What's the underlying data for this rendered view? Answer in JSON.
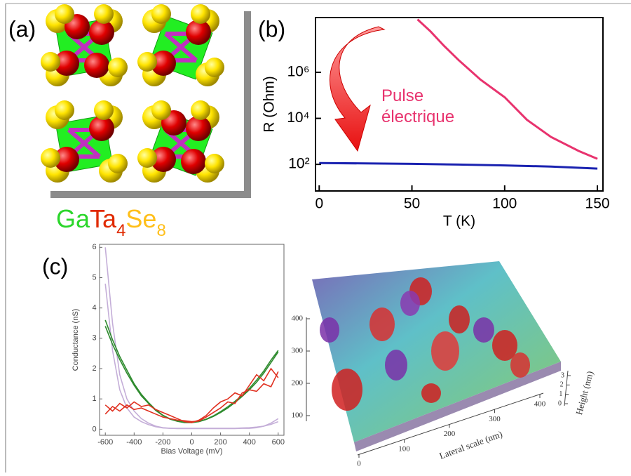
{
  "panel_labels": [
    "(a)",
    "(b)",
    "(c)"
  ],
  "formula": [
    {
      "text": "Ga",
      "color": "#2bd62b",
      "sub": false
    },
    {
      "text": "Ta",
      "color": "#e02a00",
      "sub": false
    },
    {
      "text": "4",
      "color": "#e02a00",
      "sub": true
    },
    {
      "text": "Se",
      "color": "#ffbf1a",
      "sub": false
    },
    {
      "text": "8",
      "color": "#ffbf1a",
      "sub": true
    }
  ],
  "chart_data": [
    {
      "type": "line",
      "ylabel": "R (Ohm)",
      "xlabel": "T (K)",
      "annotation": "Pulse électrique",
      "annotation_color": "#e8336e",
      "log_y": true,
      "xlim": [
        -2,
        153
      ],
      "ylim": [
        7,
        240000000
      ],
      "xticks": [
        0,
        50,
        100,
        150
      ],
      "yticks": [
        {
          "value": 100,
          "label": "10²"
        },
        {
          "value": 10000,
          "label": "10⁴"
        },
        {
          "value": 1000000,
          "label": "10⁶"
        }
      ],
      "series": [
        {
          "color": "#e8336e",
          "x": [
            53,
            60,
            67,
            75,
            87,
            100,
            112,
            125,
            140,
            150
          ],
          "values": [
            200000000,
            60000000,
            15000000,
            3500000,
            480000,
            83000,
            8700,
            1550,
            380,
            175
          ]
        },
        {
          "color": "#1a22b0",
          "x": [
            0,
            25,
            50,
            75,
            100,
            125,
            150
          ],
          "values": [
            115,
            110,
            105,
            98,
            90,
            80,
            66
          ]
        }
      ]
    },
    {
      "type": "line",
      "xlabel": "Bias Voltage (mV)",
      "ylabel": "Conductance (nS)",
      "log_y": false,
      "xlim": [
        -640,
        640
      ],
      "ylim": [
        -0.2,
        6.1
      ],
      "xticks": [
        -600,
        -400,
        -200,
        0,
        200,
        400,
        600
      ],
      "yticks": [
        0,
        1,
        2,
        3,
        4,
        5,
        6
      ],
      "x": [
        -600,
        -550,
        -500,
        -450,
        -400,
        -350,
        -300,
        -250,
        -200,
        -150,
        -100,
        -50,
        0,
        50,
        100,
        150,
        200,
        250,
        300,
        350,
        400,
        450,
        500,
        550,
        600
      ],
      "series": [
        {
          "color": "#c4aed8",
          "values": [
            6.0,
            3.5,
            1.8,
            1.0,
            0.6,
            0.35,
            0.2,
            0.1,
            0.05,
            0.03,
            0.02,
            0.02,
            0.02,
            0.02,
            0.02,
            0.02,
            0.02,
            0.02,
            0.02,
            0.03,
            0.03,
            0.05,
            0.1,
            0.2,
            0.35
          ]
        },
        {
          "color": "#c4aed8",
          "values": [
            4.8,
            2.6,
            1.3,
            0.7,
            0.4,
            0.25,
            0.15,
            0.08,
            0.04,
            0.03,
            0.03,
            0.03,
            0.03,
            0.03,
            0.03,
            0.03,
            0.03,
            0.03,
            0.03,
            0.04,
            0.05,
            0.07,
            0.1,
            0.16,
            0.25
          ]
        },
        {
          "color": "#2e8b2e",
          "values": [
            3.4,
            2.8,
            2.3,
            1.85,
            1.45,
            1.1,
            0.85,
            0.62,
            0.45,
            0.33,
            0.26,
            0.22,
            0.22,
            0.25,
            0.32,
            0.42,
            0.55,
            0.7,
            0.88,
            1.08,
            1.3,
            1.55,
            1.85,
            2.2,
            2.55
          ]
        },
        {
          "color": "#2e8b2e",
          "values": [
            3.6,
            2.95,
            2.4,
            1.95,
            1.5,
            1.15,
            0.88,
            0.64,
            0.46,
            0.34,
            0.27,
            0.23,
            0.23,
            0.26,
            0.33,
            0.44,
            0.58,
            0.74,
            0.92,
            1.12,
            1.35,
            1.62,
            1.92,
            2.28,
            2.6
          ]
        },
        {
          "color": "#e03020",
          "values": [
            0.8,
            0.6,
            0.85,
            0.7,
            0.9,
            0.75,
            0.8,
            0.65,
            0.55,
            0.45,
            0.35,
            0.25,
            0.22,
            0.3,
            0.45,
            0.7,
            0.9,
            1.0,
            1.2,
            1.1,
            1.45,
            1.8,
            1.6,
            2.0,
            1.7
          ]
        },
        {
          "color": "#e03020",
          "values": [
            0.5,
            0.75,
            0.6,
            0.8,
            0.65,
            0.7,
            0.6,
            0.5,
            0.4,
            0.35,
            0.3,
            0.28,
            0.25,
            0.27,
            0.4,
            0.55,
            0.7,
            0.9,
            0.85,
            1.2,
            1.3,
            1.25,
            1.5,
            1.4,
            1.9
          ]
        }
      ]
    },
    {
      "type": "surface",
      "xlabel": "Lateral scale (nm)",
      "zlabel": "Height (nm)",
      "xticks": [
        0,
        100,
        200,
        300,
        400
      ],
      "yticks": [
        100,
        200,
        300,
        400
      ],
      "zticks": [
        0,
        1,
        2,
        3
      ]
    }
  ]
}
